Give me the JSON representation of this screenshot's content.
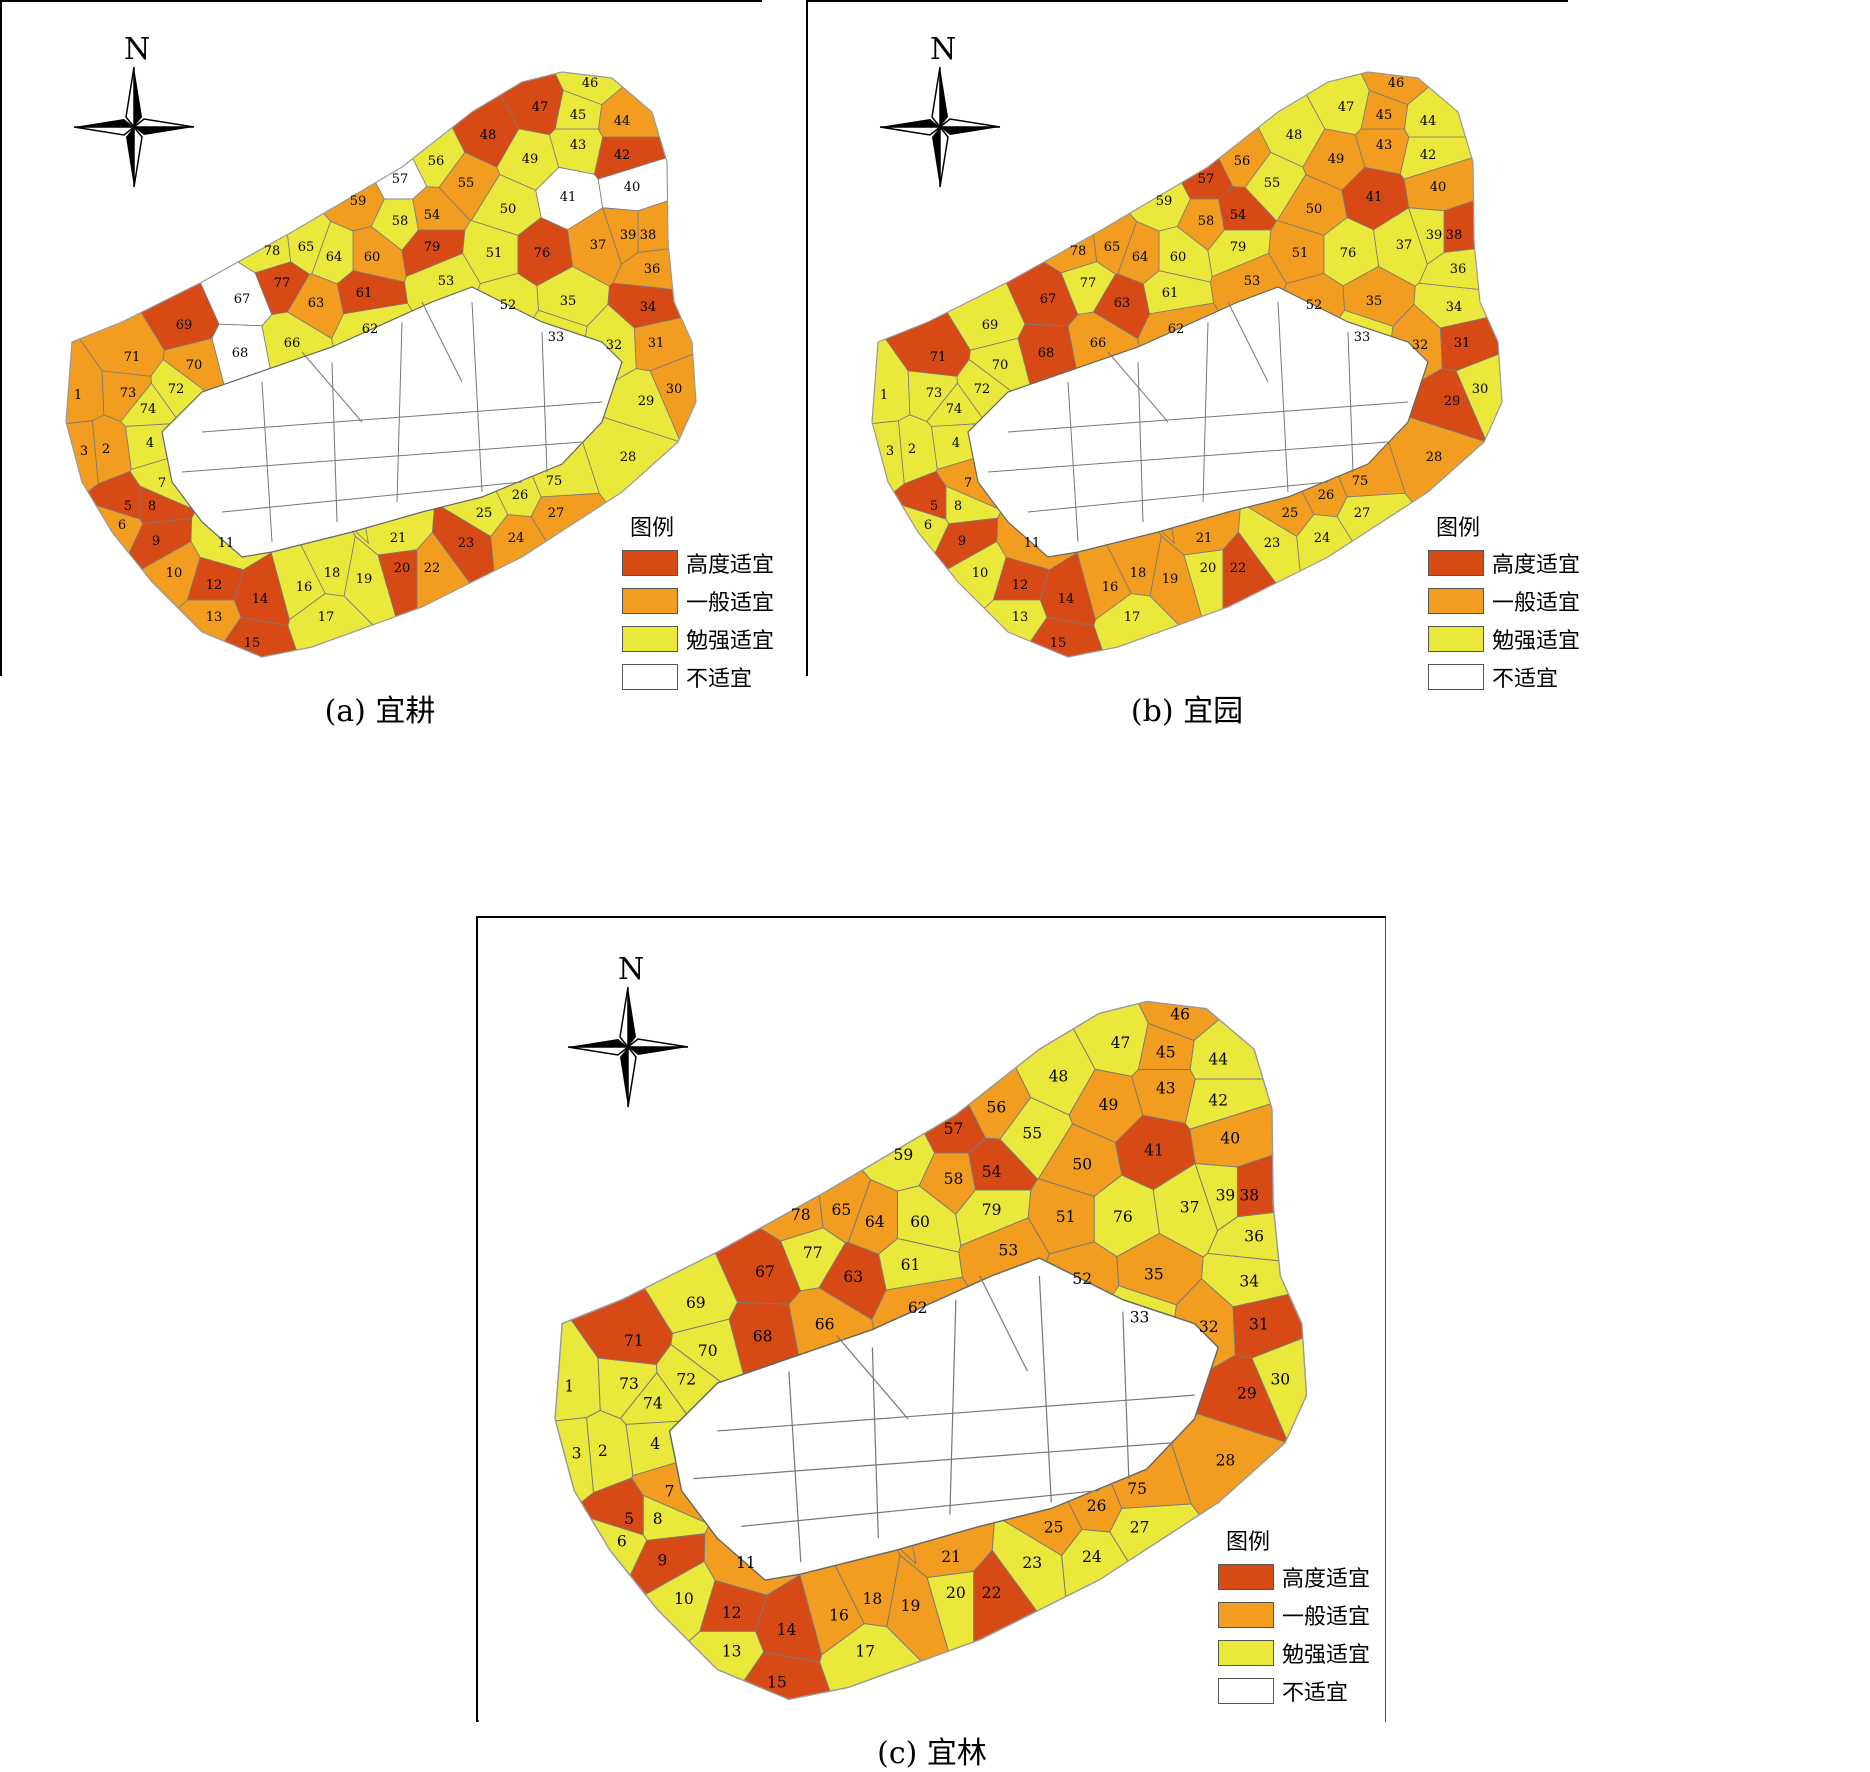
{
  "north_label": "N",
  "legend": {
    "title": "图例",
    "items": [
      {
        "label": "高度适宜",
        "color": "#d84a15"
      },
      {
        "label": "一般适宜",
        "color": "#f29d1f"
      },
      {
        "label": "勉强适宜",
        "color": "#ebe83c"
      },
      {
        "label": "不适宜",
        "color": "#ffffff"
      }
    ]
  },
  "maps": [
    {
      "caption": "(a) 宜耕",
      "units": {
        "1": "m",
        "2": "m",
        "3": "m",
        "4": "l",
        "5": "h",
        "6": "m",
        "7": "l",
        "8": "h",
        "9": "h",
        "10": "m",
        "11": "l",
        "12": "h",
        "13": "m",
        "14": "h",
        "15": "h",
        "16": "l",
        "17": "l",
        "18": "l",
        "19": "l",
        "20": "h",
        "21": "l",
        "22": "m",
        "23": "h",
        "24": "m",
        "25": "l",
        "26": "l",
        "27": "m",
        "28": "l",
        "29": "l",
        "30": "m",
        "31": "m",
        "32": "l",
        "33": "l",
        "34": "h",
        "35": "l",
        "36": "m",
        "37": "m",
        "38": "m",
        "39": "m",
        "40": "n",
        "41": "n",
        "42": "h",
        "43": "l",
        "44": "m",
        "45": "l",
        "46": "l",
        "47": "h",
        "48": "h",
        "49": "l",
        "50": "l",
        "51": "l",
        "52": "l",
        "53": "l",
        "54": "m",
        "55": "m",
        "56": "l",
        "57": "n",
        "58": "l",
        "59": "m",
        "60": "m",
        "61": "h",
        "62": "l",
        "63": "m",
        "64": "l",
        "65": "l",
        "66": "l",
        "67": "n",
        "68": "n",
        "69": "h",
        "70": "m",
        "71": "m",
        "72": "l",
        "73": "m",
        "74": "l",
        "75": "l",
        "76": "h",
        "77": "h",
        "78": "l",
        "79": "h"
      }
    },
    {
      "caption": "(b) 宜园",
      "units": {
        "1": "l",
        "2": "l",
        "3": "l",
        "4": "l",
        "5": "h",
        "6": "l",
        "7": "m",
        "8": "l",
        "9": "h",
        "10": "l",
        "11": "m",
        "12": "h",
        "13": "l",
        "14": "h",
        "15": "h",
        "16": "m",
        "17": "l",
        "18": "m",
        "19": "m",
        "20": "l",
        "21": "m",
        "22": "h",
        "23": "l",
        "24": "l",
        "25": "m",
        "26": "m",
        "27": "l",
        "28": "m",
        "29": "h",
        "30": "l",
        "31": "h",
        "32": "m",
        "33": "l",
        "34": "l",
        "35": "m",
        "36": "l",
        "37": "l",
        "38": "h",
        "39": "l",
        "40": "m",
        "41": "h",
        "42": "l",
        "43": "m",
        "44": "l",
        "45": "m",
        "46": "m",
        "47": "l",
        "48": "l",
        "49": "m",
        "50": "m",
        "51": "m",
        "52": "m",
        "53": "m",
        "54": "h",
        "55": "l",
        "56": "m",
        "57": "h",
        "58": "m",
        "59": "l",
        "60": "l",
        "61": "l",
        "62": "m",
        "63": "h",
        "64": "m",
        "65": "m",
        "66": "m",
        "67": "h",
        "68": "h",
        "69": "l",
        "70": "l",
        "71": "h",
        "72": "l",
        "73": "l",
        "74": "l",
        "75": "m",
        "76": "l",
        "77": "l",
        "78": "m",
        "79": "l"
      }
    },
    {
      "caption": "(c) 宜林",
      "units": {
        "1": "l",
        "2": "l",
        "3": "l",
        "4": "l",
        "5": "h",
        "6": "l",
        "7": "m",
        "8": "l",
        "9": "h",
        "10": "l",
        "11": "m",
        "12": "h",
        "13": "l",
        "14": "h",
        "15": "h",
        "16": "m",
        "17": "l",
        "18": "m",
        "19": "m",
        "20": "l",
        "21": "m",
        "22": "h",
        "23": "l",
        "24": "l",
        "25": "m",
        "26": "m",
        "27": "l",
        "28": "m",
        "29": "h",
        "30": "l",
        "31": "h",
        "32": "m",
        "33": "l",
        "34": "l",
        "35": "m",
        "36": "l",
        "37": "l",
        "38": "h",
        "39": "l",
        "40": "m",
        "41": "h",
        "42": "l",
        "43": "m",
        "44": "l",
        "45": "m",
        "46": "m",
        "47": "l",
        "48": "l",
        "49": "m",
        "50": "m",
        "51": "m",
        "52": "m",
        "53": "m",
        "54": "h",
        "55": "l",
        "56": "m",
        "57": "h",
        "58": "m",
        "59": "l",
        "60": "l",
        "61": "l",
        "62": "m",
        "63": "h",
        "64": "m",
        "65": "m",
        "66": "m",
        "67": "h",
        "68": "h",
        "69": "l",
        "70": "l",
        "71": "h",
        "72": "l",
        "73": "l",
        "74": "l",
        "75": "m",
        "76": "l",
        "77": "l",
        "78": "m",
        "79": "l"
      }
    }
  ]
}
